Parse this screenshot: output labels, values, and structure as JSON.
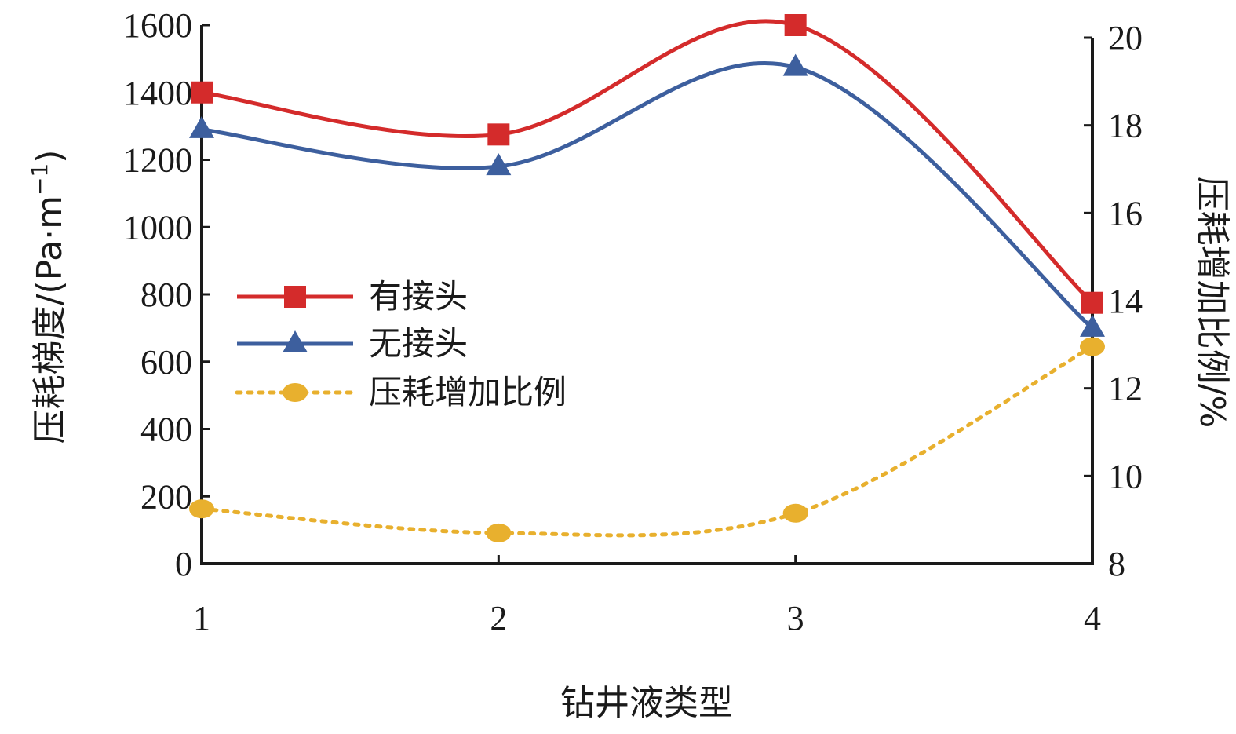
{
  "chart_data": {
    "type": "line",
    "x": [
      1,
      2,
      3,
      4
    ],
    "xlabel": "钻井液类型",
    "ylabel_left_main": "压耗梯度/(Pa·m",
    "ylabel_left_sup": "−1",
    "ylabel_left_close": ")",
    "ylabel_right": "压耗增加比例/%",
    "xlim": [
      1,
      4
    ],
    "ylim_left": [
      0,
      1600
    ],
    "ylim_right": [
      8,
      20
    ],
    "xticks": [
      "1",
      "2",
      "3",
      "4"
    ],
    "yticks_left": [
      "0",
      "200",
      "400",
      "600",
      "800",
      "1000",
      "1200",
      "1400",
      "1600"
    ],
    "yticks_right": [
      "8",
      "10",
      "12",
      "14",
      "16",
      "18",
      "20"
    ],
    "legend_position": "center-left",
    "series": [
      {
        "name": "有接头",
        "axis": "left",
        "marker": "square",
        "line": "solid",
        "color": "#d42b2b",
        "values": [
          1400,
          1275,
          1600,
          775
        ]
      },
      {
        "name": "无接头",
        "axis": "left",
        "marker": "triangle",
        "line": "solid",
        "color": "#3d5f9e",
        "values": [
          1290,
          1180,
          1475,
          700
        ]
      },
      {
        "name": "压耗增加比例",
        "axis": "right",
        "marker": "circle",
        "line": "dotted",
        "color": "#e8b02e",
        "values": [
          9.25,
          8.7,
          9.15,
          12.95
        ]
      }
    ]
  }
}
